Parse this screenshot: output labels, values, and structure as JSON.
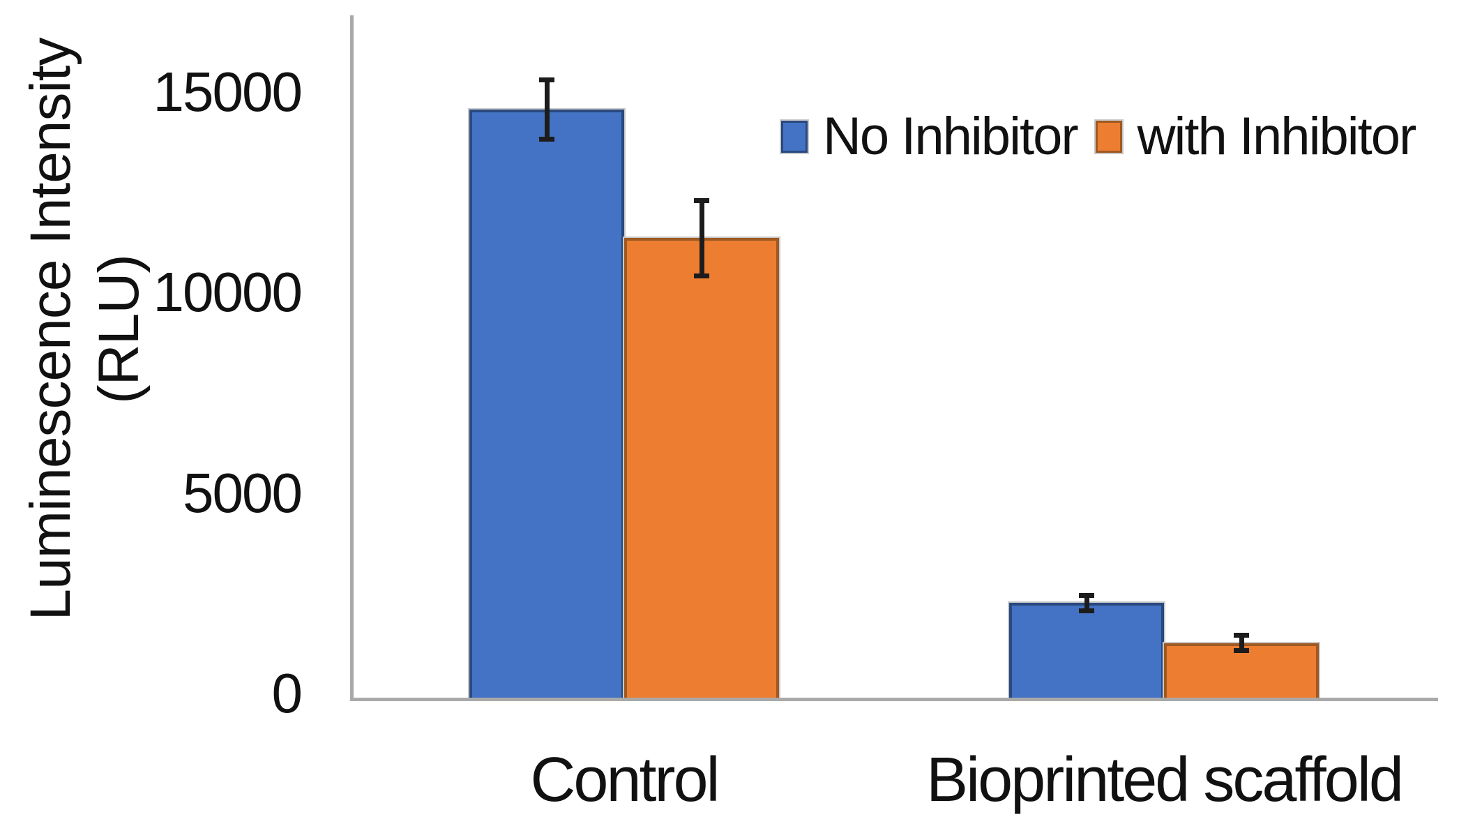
{
  "chart_data": {
    "type": "bar",
    "title": "",
    "categories": [
      "Control",
      "Bioprinted scaffold"
    ],
    "series": [
      {
        "name": "No Inhibitor",
        "color": "#4472C4",
        "values": [
          14700,
          2400
        ],
        "error_bars": [
          750,
          200
        ]
      },
      {
        "name": "with Inhibitor",
        "color": "#ED7D31",
        "values": [
          11500,
          1400
        ],
        "error_bars": [
          950,
          200
        ]
      }
    ],
    "ylabel": "Luminescence Intensity (RLU)",
    "ylabel_lines": [
      "Luminescence Intensity",
      "(RLU)"
    ],
    "xlabel": "",
    "yticks": [
      0,
      5000,
      10000,
      15000
    ],
    "ylim": [
      0,
      17000
    ],
    "grid": false,
    "legend_position": "top-right",
    "bar_outline_color": "#c9c9c9",
    "error_bar_color": "#1c1c1c",
    "axis_color": "#a9a9a9",
    "text_color": "#111111",
    "background_color": "#ffffff"
  }
}
